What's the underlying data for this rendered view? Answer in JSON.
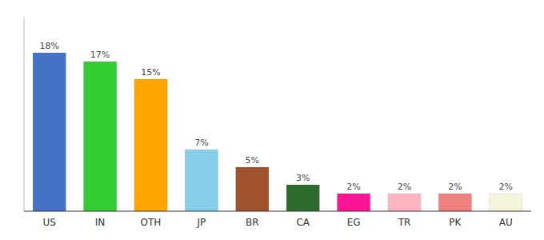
{
  "chart_data": {
    "type": "bar",
    "categories": [
      "US",
      "IN",
      "OTH",
      "JP",
      "BR",
      "CA",
      "EG",
      "TR",
      "PK",
      "AU"
    ],
    "values": [
      18,
      17,
      15,
      7,
      5,
      3,
      2,
      2,
      2,
      2
    ],
    "value_labels": [
      "18%",
      "17%",
      "15%",
      "7%",
      "5%",
      "3%",
      "2%",
      "2%",
      "2%",
      "2%"
    ],
    "colors": [
      "#4472C4",
      "#33CC33",
      "#FFA500",
      "#87CEEB",
      "#A0522D",
      "#2D6A2D",
      "#FF1493",
      "#FFB6C1",
      "#F08080",
      "#F5F5DC"
    ],
    "ylim": [
      0,
      22
    ],
    "data_labels": true,
    "tick_labels": "x",
    "grid": false
  }
}
